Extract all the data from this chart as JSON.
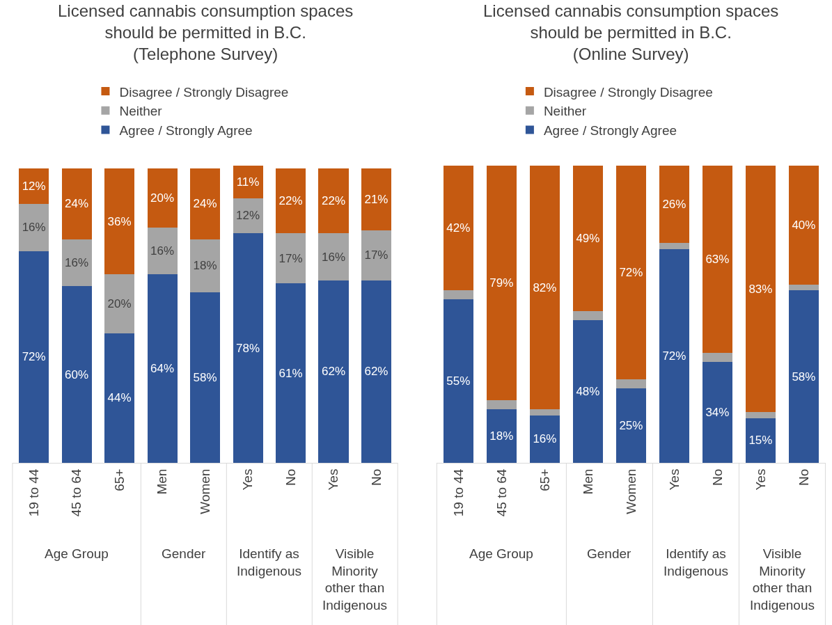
{
  "chart_data": [
    {
      "type": "bar",
      "title": "Licensed cannabis consumption spaces should be permitted in B.C. (Telephone Survey)",
      "stacked": true,
      "legend": "top",
      "categories": [
        "19 to 44",
        "45 to 64",
        "65+",
        "Men",
        "Women",
        "Yes",
        "No",
        "Yes",
        "No"
      ],
      "annotations": [
        "Age Group",
        "Gender",
        "Identify as Indigenous",
        "Visible Minority other than Indigenous"
      ],
      "series": [
        {
          "name": "Agree / Strongly Agree",
          "color": "#2f5597",
          "values": [
            72,
            60,
            44,
            64,
            58,
            78,
            61,
            62,
            62
          ],
          "value_labels": [
            "72%",
            "60%",
            "44%",
            "64%",
            "58%",
            "78%",
            "61%",
            "62%",
            "62%"
          ]
        },
        {
          "name": "Neither",
          "color": "#a5a5a5",
          "values": [
            16,
            16,
            20,
            16,
            18,
            12,
            17,
            16,
            17
          ],
          "value_labels": [
            "16%",
            "16%",
            "20%",
            "16%",
            "18%",
            "12%",
            "17%",
            "16%",
            "17%"
          ]
        },
        {
          "name": "Disagree / Strongly Disagree",
          "color": "#c55a11",
          "values": [
            12,
            24,
            36,
            20,
            24,
            11,
            22,
            22,
            21
          ],
          "value_labels": [
            "12%",
            "24%",
            "36%",
            "20%",
            "24%",
            "11%",
            "22%",
            "22%",
            "21%"
          ]
        }
      ]
    },
    {
      "type": "bar",
      "title": "Licensed cannabis consumption spaces should be permitted in B.C. (Online Survey)",
      "stacked": true,
      "legend": "top",
      "categories": [
        "19 to 44",
        "45 to 64",
        "65+",
        "Men",
        "Women",
        "Yes",
        "No",
        "Yes",
        "No"
      ],
      "annotations": [
        "Age Group",
        "Gender",
        "Identify as Indigenous",
        "Visible Minority other than Indigenous"
      ],
      "series": [
        {
          "name": "Agree / Strongly Agree",
          "color": "#2f5597",
          "values": [
            55,
            18,
            16,
            48,
            25,
            72,
            34,
            15,
            58
          ],
          "value_labels": [
            "55%",
            "18%",
            "16%",
            "48%",
            "25%",
            "72%",
            "34%",
            "15%",
            "58%"
          ]
        },
        {
          "name": "Neither",
          "color": "#a5a5a5",
          "values": [
            3,
            3,
            2,
            3,
            3,
            2,
            3,
            2,
            2
          ],
          "value_labels": [
            null,
            null,
            null,
            null,
            null,
            null,
            null,
            null,
            null
          ]
        },
        {
          "name": "Disagree / Strongly Disagree",
          "color": "#c55a11",
          "values": [
            42,
            79,
            82,
            49,
            72,
            26,
            63,
            83,
            40
          ],
          "value_labels": [
            "42%",
            "79%",
            "82%",
            "49%",
            "72%",
            "26%",
            "63%",
            "83%",
            "40%"
          ]
        }
      ]
    }
  ]
}
